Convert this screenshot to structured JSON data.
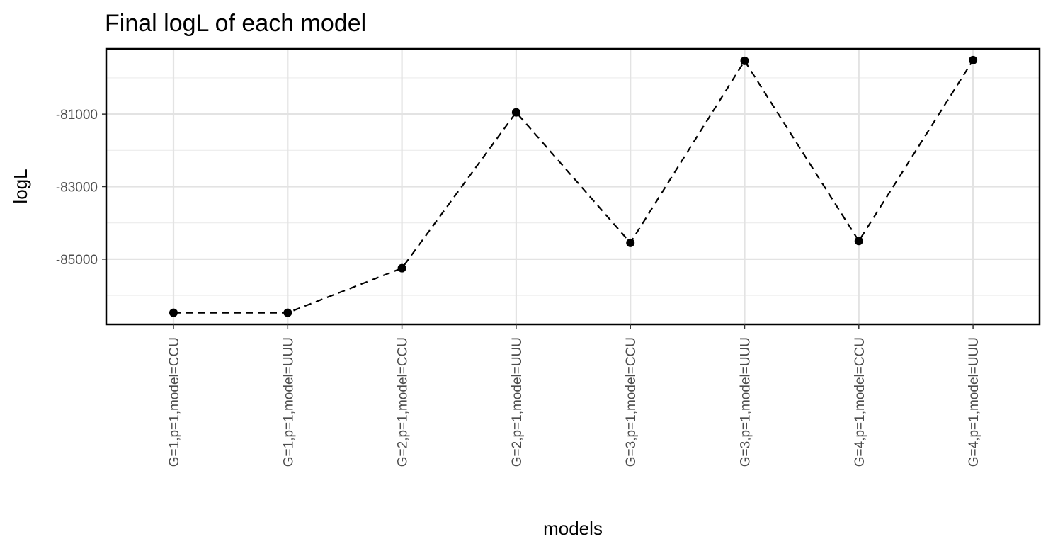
{
  "chart_data": {
    "type": "line",
    "title": "Final logL of each model",
    "xlabel": "models",
    "ylabel": "logL",
    "categories": [
      "G=1,p=1,model=CCU",
      "G=1,p=1,model=UUU",
      "G=2,p=1,model=CCU",
      "G=2,p=1,model=UUU",
      "G=3,p=1,model=CCU",
      "G=3,p=1,model=UUU",
      "G=4,p=1,model=CCU",
      "G=4,p=1,model=UUU"
    ],
    "series": [
      {
        "values": [
          -86480,
          -86480,
          -85250,
          -80950,
          -84550,
          -79530,
          -84500,
          -79510
        ],
        "line_style": "dashed",
        "color": "#000000"
      }
    ],
    "y_ticks": [
      -81000,
      -83000,
      -85000
    ],
    "y_tick_labels": [
      "-81000",
      "-83000",
      "-85000"
    ],
    "ylim": [
      -86800,
      -79200
    ],
    "grid": true,
    "legend": "none"
  }
}
